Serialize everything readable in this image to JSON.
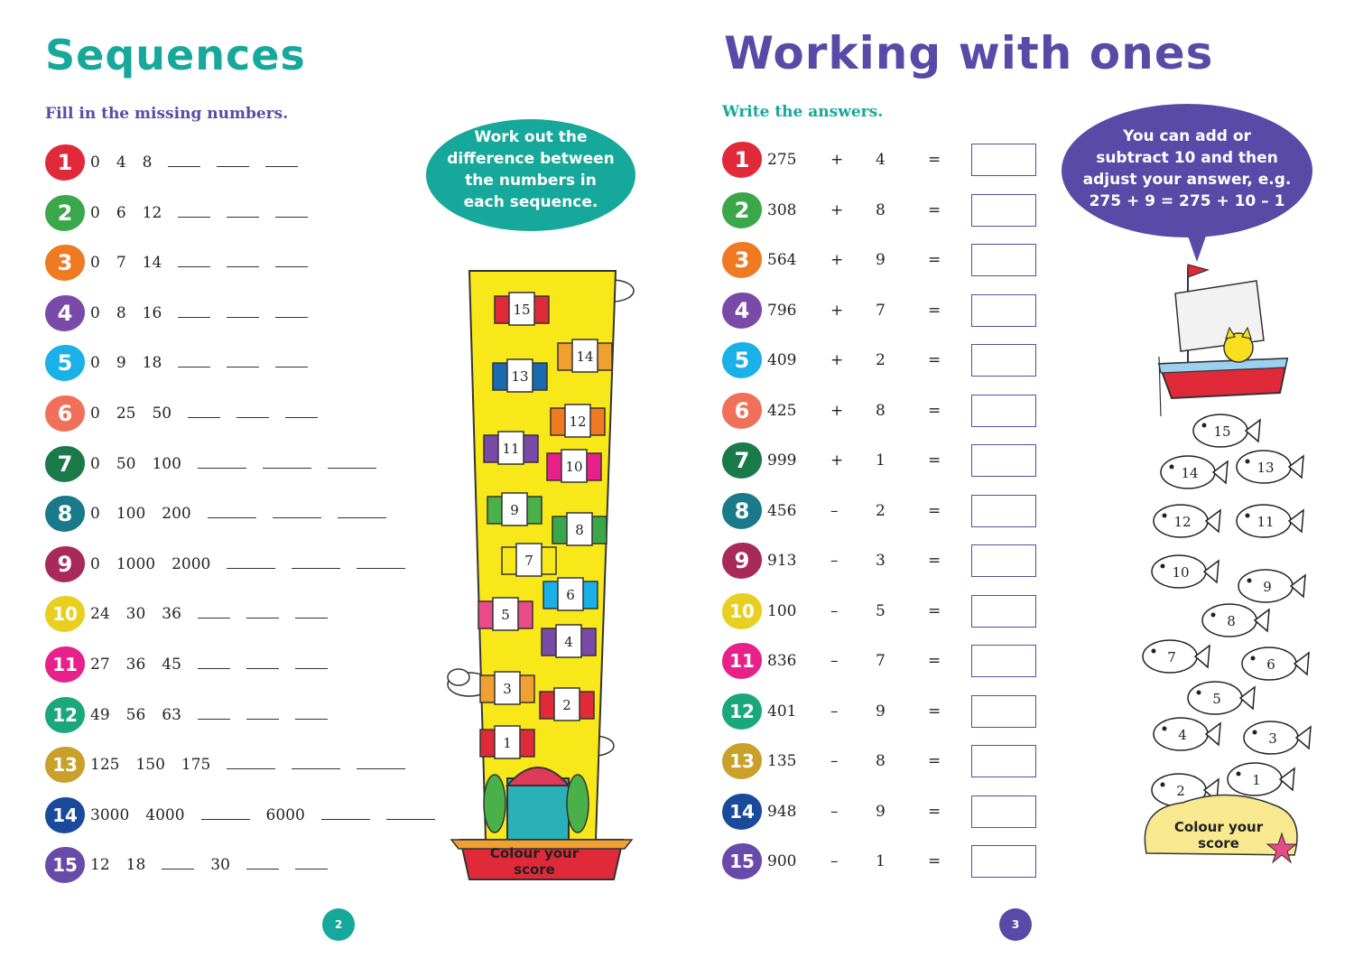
{
  "left_page": {
    "title": "Sequences",
    "instruction": "Fill in the missing numbers.",
    "tip": [
      "Work out the",
      "difference between",
      "the numbers in",
      "each sequence."
    ],
    "score_label": [
      "Colour your",
      "score"
    ],
    "page_number": "2",
    "questions": [
      {
        "num": "1",
        "color": "#e02a3a",
        "items": [
          "0",
          "4",
          "8",
          "_",
          "_",
          "_"
        ]
      },
      {
        "num": "2",
        "color": "#3aa84a",
        "items": [
          "0",
          "6",
          "12",
          "_",
          "_",
          "_"
        ]
      },
      {
        "num": "3",
        "color": "#f07a22",
        "items": [
          "0",
          "7",
          "14",
          "_",
          "_",
          "_"
        ]
      },
      {
        "num": "4",
        "color": "#7a4aa8",
        "items": [
          "0",
          "8",
          "16",
          "_",
          "_",
          "_"
        ]
      },
      {
        "num": "5",
        "color": "#1ab0e8",
        "items": [
          "0",
          "9",
          "18",
          "_",
          "_",
          "_"
        ]
      },
      {
        "num": "6",
        "color": "#f0705a",
        "items": [
          "0",
          "25",
          "50",
          "_",
          "_",
          "_"
        ]
      },
      {
        "num": "7",
        "color": "#1a7a4a",
        "items": [
          "0",
          "50",
          "100",
          "__",
          "__",
          "__"
        ]
      },
      {
        "num": "8",
        "color": "#1a7a8a",
        "items": [
          "0",
          "100",
          "200",
          "__",
          "__",
          "__"
        ]
      },
      {
        "num": "9",
        "color": "#a82a5a",
        "items": [
          "0",
          "1000",
          "2000",
          "__",
          "__",
          "__"
        ]
      },
      {
        "num": "10",
        "color": "#e8d020",
        "items": [
          "24",
          "30",
          "36",
          "_",
          "_",
          "_"
        ]
      },
      {
        "num": "11",
        "color": "#e8208a",
        "items": [
          "27",
          "36",
          "45",
          "_",
          "_",
          "_"
        ]
      },
      {
        "num": "12",
        "color": "#1aa87a",
        "items": [
          "49",
          "56",
          "63",
          "_",
          "_",
          "_"
        ]
      },
      {
        "num": "13",
        "color": "#c8a02a",
        "items": [
          "125",
          "150",
          "175",
          "__",
          "__",
          "__"
        ]
      },
      {
        "num": "14",
        "color": "#1a4a9a",
        "items": [
          "3000",
          "4000",
          "__",
          "6000",
          "__",
          "__"
        ]
      },
      {
        "num": "15",
        "color": "#6a4aa8",
        "items": [
          "12",
          "18",
          "_",
          "30",
          "_",
          "_"
        ]
      }
    ],
    "tower_numbers": [
      "15",
      "14",
      "13",
      "12",
      "11",
      "10",
      "9",
      "8",
      "7",
      "6",
      "5",
      "4",
      "3",
      "2",
      "1"
    ]
  },
  "right_page": {
    "title": "Working with ones",
    "instruction": "Write the answers.",
    "tip": [
      "You can add or",
      "subtract 10 and then",
      "adjust your answer, e.g.",
      "275 + 9 = 275 + 10 – 1"
    ],
    "score_label": [
      "Colour your",
      "score"
    ],
    "page_number": "3",
    "questions": [
      {
        "num": "1",
        "color": "#e02a3a",
        "a": "275",
        "op": "+",
        "b": "4",
        "eq": "="
      },
      {
        "num": "2",
        "color": "#3aa84a",
        "a": "308",
        "op": "+",
        "b": "8",
        "eq": "="
      },
      {
        "num": "3",
        "color": "#f07a22",
        "a": "564",
        "op": "+",
        "b": "9",
        "eq": "="
      },
      {
        "num": "4",
        "color": "#7a4aa8",
        "a": "796",
        "op": "+",
        "b": "7",
        "eq": "="
      },
      {
        "num": "5",
        "color": "#1ab0e8",
        "a": "409",
        "op": "+",
        "b": "2",
        "eq": "="
      },
      {
        "num": "6",
        "color": "#f0705a",
        "a": "425",
        "op": "+",
        "b": "8",
        "eq": "="
      },
      {
        "num": "7",
        "color": "#1a7a4a",
        "a": "999",
        "op": "+",
        "b": "1",
        "eq": "="
      },
      {
        "num": "8",
        "color": "#1a7a8a",
        "a": "456",
        "op": "–",
        "b": "2",
        "eq": "="
      },
      {
        "num": "9",
        "color": "#a82a5a",
        "a": "913",
        "op": "–",
        "b": "3",
        "eq": "="
      },
      {
        "num": "10",
        "color": "#e8d020",
        "a": "100",
        "op": "–",
        "b": "5",
        "eq": "="
      },
      {
        "num": "11",
        "color": "#e8208a",
        "a": "836",
        "op": "–",
        "b": "7",
        "eq": "="
      },
      {
        "num": "12",
        "color": "#1aa87a",
        "a": "401",
        "op": "–",
        "b": "9",
        "eq": "="
      },
      {
        "num": "13",
        "color": "#c8a02a",
        "a": "135",
        "op": "–",
        "b": "8",
        "eq": "="
      },
      {
        "num": "14",
        "color": "#1a4a9a",
        "a": "948",
        "op": "–",
        "b": "9",
        "eq": "="
      },
      {
        "num": "15",
        "color": "#6a4aa8",
        "a": "900",
        "op": "–",
        "b": "1",
        "eq": "="
      }
    ],
    "fish_numbers": [
      "15",
      "14",
      "13",
      "12",
      "11",
      "10",
      "9",
      "8",
      "7",
      "6",
      "5",
      "4",
      "3",
      "2",
      "1"
    ]
  }
}
